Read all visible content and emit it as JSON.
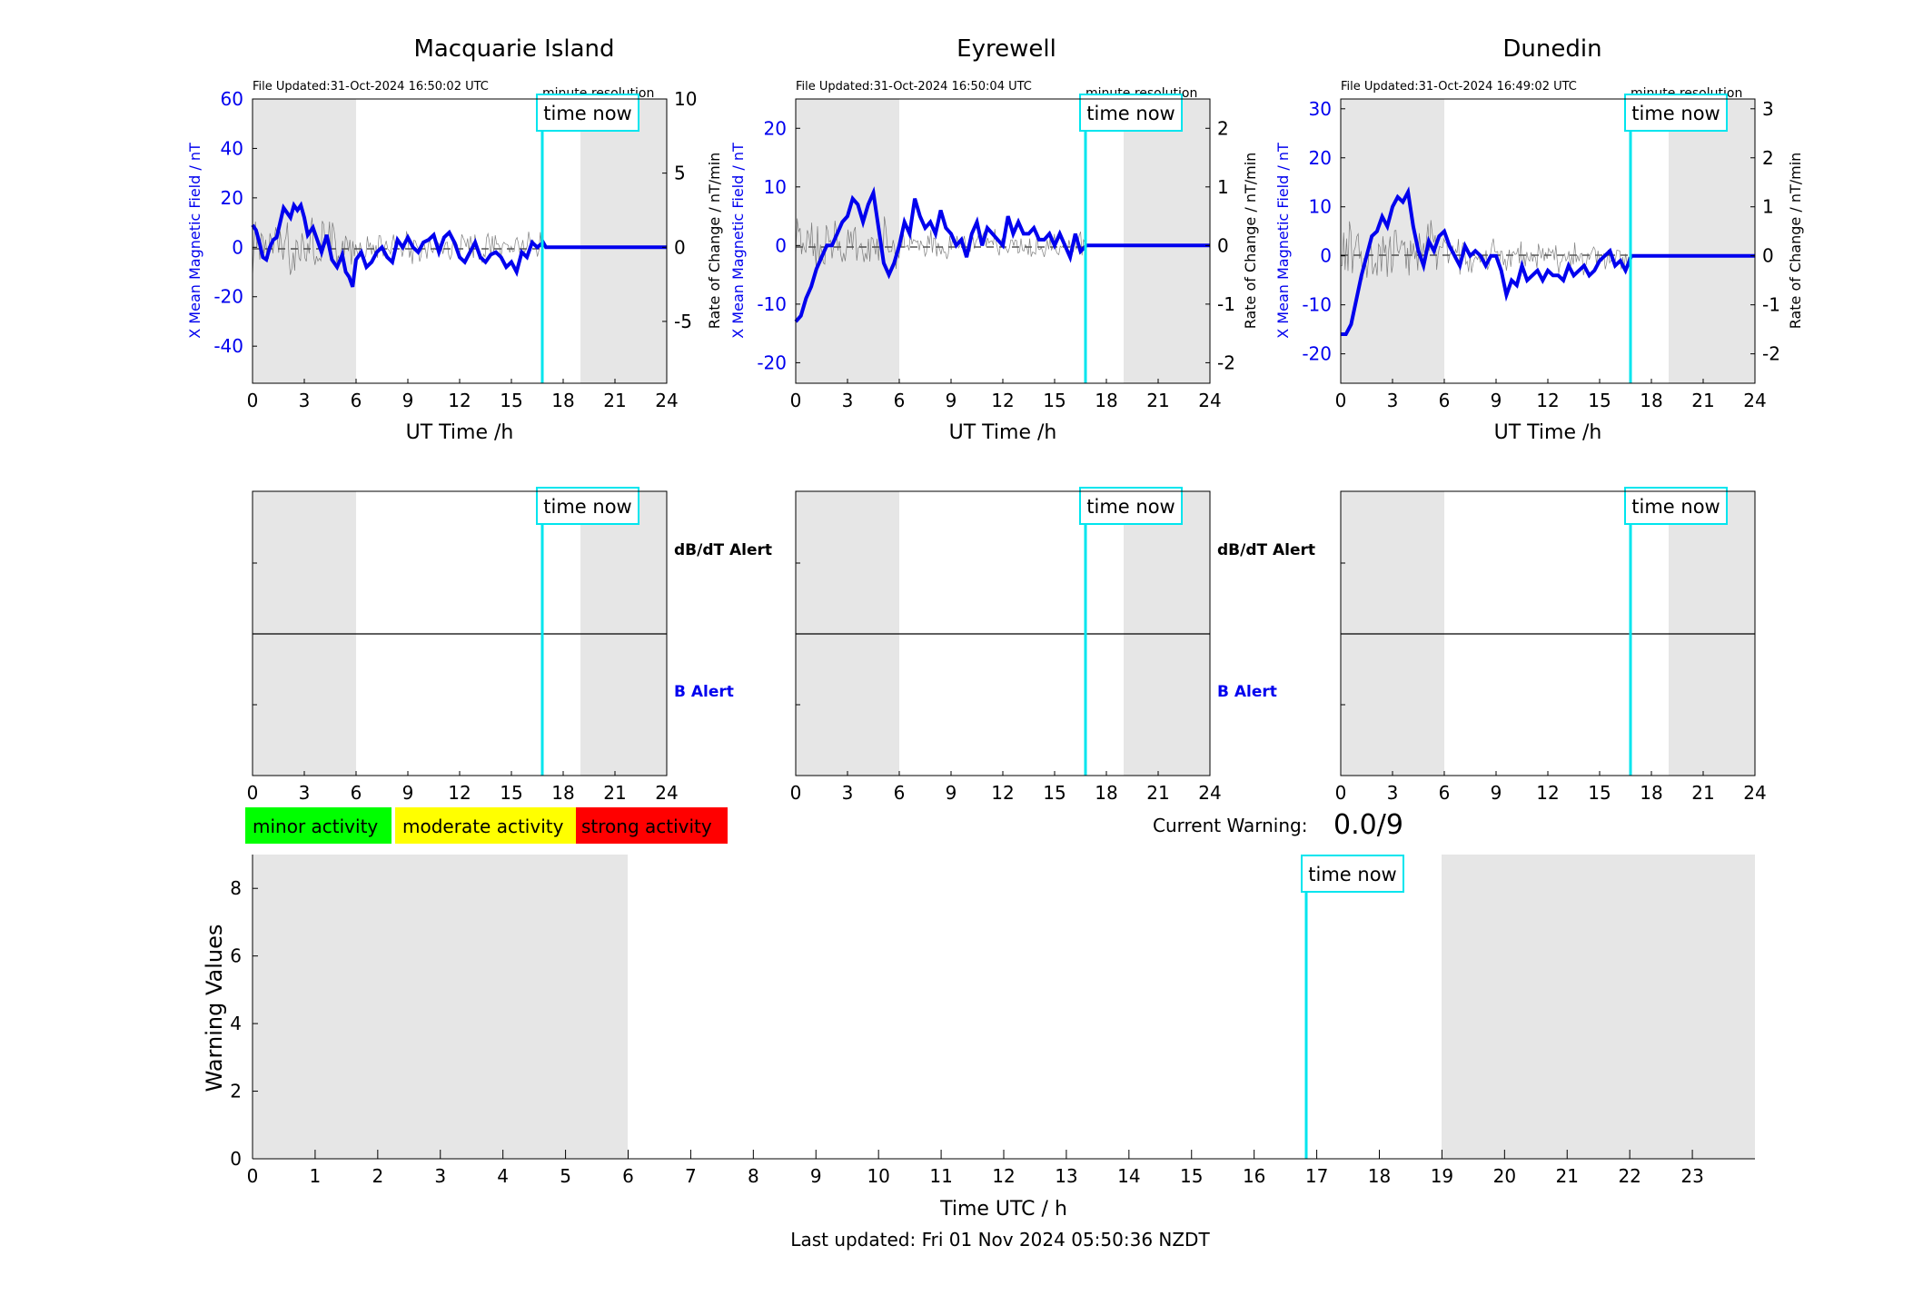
{
  "figure": {
    "footer_text": "Last updated: Fri 01 Nov 2024 05:50:36 NZDT",
    "colors": {
      "shade": "#e6e6e6",
      "mean_line": "#0000ee",
      "rate_line": "#555555",
      "now_line": "#00e5ee",
      "minor": "#00ff00",
      "moderate": "#ffff00",
      "strong": "#ff0000"
    }
  },
  "chart_data": [
    {
      "type": "line",
      "title": "Macquarie Island",
      "file_updated": "File Updated:31-Oct-2024 16:50:02 UTC",
      "resolution_label": "minute resolution",
      "now_label": "time now",
      "now_hour": 16.84,
      "shaded_hours": [
        [
          0,
          6
        ],
        [
          19,
          24
        ]
      ],
      "xlabel": "UT Time /h",
      "ylabel": "X Mean Magnetic Field / nT",
      "ylabel_right": "Rate of Change / nT/min",
      "xlim": [
        0,
        24
      ],
      "xticks": [
        0,
        3,
        6,
        9,
        12,
        15,
        18,
        21,
        24
      ],
      "ylim": [
        -55,
        60
      ],
      "yticks": [
        -40,
        -20,
        0,
        20,
        40,
        60
      ],
      "ylim_right": [
        -9.17,
        10
      ],
      "yticks_right": [
        -5,
        0,
        5,
        10
      ],
      "series": [
        {
          "x": [
            0,
            0.2,
            0.4,
            0.6,
            0.8,
            1.0,
            1.2,
            1.4,
            1.6,
            1.8,
            2.0,
            2.2,
            2.4,
            2.6,
            2.8,
            3.0,
            3.2,
            3.5,
            3.8,
            4.0,
            4.3,
            4.6,
            4.9,
            5.2,
            5.4,
            5.6,
            5.8,
            6.0,
            6.3,
            6.6,
            6.9,
            7.2,
            7.5,
            7.8,
            8.1,
            8.4,
            8.7,
            9.0,
            9.3,
            9.6,
            9.9,
            10.2,
            10.5,
            10.8,
            11.1,
            11.4,
            11.7,
            12.0,
            12.3,
            12.6,
            12.9,
            13.2,
            13.5,
            13.8,
            14.1,
            14.4,
            14.7,
            15.0,
            15.3,
            15.6,
            15.9,
            16.2,
            16.5,
            16.84,
            17,
            18,
            19,
            20,
            21,
            22,
            23,
            24
          ],
          "values": [
            9,
            7,
            2,
            -4,
            -5,
            0,
            3,
            4,
            10,
            16,
            14,
            12,
            17,
            15,
            17,
            12,
            5,
            8,
            2,
            -2,
            5,
            -5,
            -8,
            -3,
            -10,
            -12,
            -16,
            -5,
            -2,
            -8,
            -6,
            -2,
            0,
            -4,
            -6,
            3,
            0,
            4,
            0,
            -2,
            2,
            3,
            5,
            -2,
            4,
            6,
            2,
            -4,
            -6,
            -2,
            2,
            -4,
            -6,
            -3,
            -2,
            -4,
            -8,
            -6,
            -10,
            -2,
            -4,
            2,
            0,
            2,
            0,
            0,
            0,
            0,
            0,
            0,
            0,
            0
          ]
        }
      ]
    },
    {
      "type": "line",
      "title": "Eyrewell",
      "file_updated": "File Updated:31-Oct-2024 16:50:04 UTC",
      "resolution_label": "minute resolution",
      "now_label": "time now",
      "now_hour": 16.84,
      "shaded_hours": [
        [
          0,
          6
        ],
        [
          19,
          24
        ]
      ],
      "xlabel": "UT Time /h",
      "ylabel": "X Mean Magnetic Field / nT",
      "ylabel_right": "Rate of Change / nT/min",
      "xlim": [
        0,
        24
      ],
      "xticks": [
        0,
        3,
        6,
        9,
        12,
        15,
        18,
        21,
        24
      ],
      "ylim": [
        -23.5,
        25
      ],
      "yticks": [
        -20,
        -10,
        0,
        10,
        20
      ],
      "ylim_right": [
        -2.35,
        2.5
      ],
      "yticks_right": [
        -2,
        -1,
        0,
        1,
        2
      ],
      "series": [
        {
          "x": [
            0,
            0.3,
            0.6,
            0.9,
            1.2,
            1.5,
            1.8,
            2.1,
            2.4,
            2.7,
            3.0,
            3.3,
            3.6,
            3.9,
            4.2,
            4.5,
            4.8,
            5.1,
            5.4,
            5.7,
            6.0,
            6.3,
            6.6,
            6.9,
            7.2,
            7.5,
            7.8,
            8.1,
            8.4,
            8.7,
            9.0,
            9.3,
            9.6,
            9.9,
            10.2,
            10.5,
            10.8,
            11.1,
            11.4,
            11.7,
            12.0,
            12.3,
            12.6,
            12.9,
            13.2,
            13.5,
            13.8,
            14.1,
            14.4,
            14.7,
            15.0,
            15.3,
            15.6,
            15.9,
            16.2,
            16.5,
            16.84,
            17,
            18,
            19,
            20,
            21,
            22,
            23,
            24
          ],
          "values": [
            -13,
            -12,
            -9,
            -7,
            -4,
            -2,
            0,
            0,
            2,
            4,
            5,
            8,
            7,
            4,
            7,
            9,
            3,
            -3,
            -5,
            -3,
            0,
            4,
            2,
            8,
            5,
            3,
            4,
            2,
            6,
            3,
            2,
            0,
            1,
            -2,
            2,
            4,
            0,
            3,
            2,
            1,
            0,
            5,
            2,
            4,
            2,
            2,
            3,
            1,
            1,
            2,
            0,
            2,
            0,
            -2,
            2,
            -1,
            0,
            0,
            0,
            0,
            0,
            0,
            0,
            0,
            0
          ]
        }
      ]
    },
    {
      "type": "line",
      "title": "Dunedin",
      "file_updated": "File Updated:31-Oct-2024 16:49:02 UTC",
      "resolution_label": "minute resolution",
      "now_label": "time now",
      "now_hour": 16.84,
      "shaded_hours": [
        [
          0,
          6
        ],
        [
          19,
          24
        ]
      ],
      "xlabel": "UT Time /h",
      "ylabel": "X Mean Magnetic Field / nT",
      "ylabel_right": "Rate of Change / nT/min",
      "xlim": [
        0,
        24
      ],
      "xticks": [
        0,
        3,
        6,
        9,
        12,
        15,
        18,
        21,
        24
      ],
      "ylim": [
        -26,
        32
      ],
      "yticks": [
        -20,
        -10,
        0,
        10,
        20,
        30
      ],
      "ylim_right": [
        -2.6,
        3.2
      ],
      "yticks_right": [
        -2,
        -1,
        0,
        1,
        2,
        3
      ],
      "series": [
        {
          "x": [
            0,
            0.3,
            0.6,
            0.9,
            1.2,
            1.5,
            1.8,
            2.1,
            2.4,
            2.7,
            3.0,
            3.3,
            3.6,
            3.9,
            4.2,
            4.5,
            4.8,
            5.1,
            5.4,
            5.7,
            6.0,
            6.3,
            6.6,
            6.9,
            7.2,
            7.5,
            7.8,
            8.1,
            8.4,
            8.7,
            9.0,
            9.3,
            9.6,
            9.9,
            10.2,
            10.5,
            10.8,
            11.1,
            11.4,
            11.7,
            12.0,
            12.3,
            12.6,
            12.9,
            13.2,
            13.5,
            13.8,
            14.1,
            14.4,
            14.7,
            15.0,
            15.3,
            15.6,
            15.9,
            16.2,
            16.5,
            16.84,
            17,
            18,
            19,
            20,
            21,
            22,
            23,
            24
          ],
          "values": [
            -16,
            -16,
            -14,
            -9,
            -4,
            0,
            4,
            5,
            8,
            6,
            10,
            12,
            11,
            13,
            6,
            1,
            -2,
            3,
            1,
            4,
            5,
            2,
            0,
            -2,
            2,
            0,
            1,
            0,
            -2,
            0,
            0,
            -3,
            -8,
            -5,
            -6,
            -2,
            -5,
            -4,
            -3,
            -5,
            -3,
            -4,
            -4,
            -5,
            -2,
            -4,
            -3,
            -2,
            -4,
            -3,
            -1,
            0,
            1,
            -2,
            -1,
            -3,
            0,
            0,
            0,
            0,
            0,
            0,
            0,
            0,
            0
          ]
        }
      ]
    },
    {
      "type": "line",
      "now_label": "time now",
      "now_hour": 16.84,
      "shaded_hours": [
        [
          0,
          6
        ],
        [
          19,
          24
        ]
      ],
      "xlim": [
        0,
        24
      ],
      "xticks": [
        0,
        3,
        6,
        9,
        12,
        15,
        18,
        21,
        24
      ],
      "alert_upper_label": "dB/dT Alert",
      "alert_lower_label": "B Alert",
      "series": []
    },
    {
      "type": "line",
      "now_label": "time now",
      "now_hour": 16.84,
      "shaded_hours": [
        [
          0,
          6
        ],
        [
          19,
          24
        ]
      ],
      "xlim": [
        0,
        24
      ],
      "xticks": [
        0,
        3,
        6,
        9,
        12,
        15,
        18,
        21,
        24
      ],
      "alert_upper_label": "dB/dT Alert",
      "alert_lower_label": "B Alert",
      "series": []
    },
    {
      "type": "line",
      "now_label": "time now",
      "now_hour": 16.84,
      "shaded_hours": [
        [
          0,
          6
        ],
        [
          19,
          24
        ]
      ],
      "xlim": [
        0,
        24
      ],
      "xticks": [
        0,
        3,
        6,
        9,
        12,
        15,
        18,
        21,
        24
      ],
      "series": []
    },
    {
      "type": "bar",
      "now_label": "time now",
      "now_hour": 16.84,
      "shaded_hours": [
        [
          0,
          6
        ],
        [
          19,
          24
        ]
      ],
      "xlabel": "Time UTC / h",
      "ylabel": "Warning Values",
      "xlim": [
        0,
        24
      ],
      "xticks": [
        0,
        1,
        2,
        3,
        4,
        5,
        6,
        7,
        8,
        9,
        10,
        11,
        12,
        13,
        14,
        15,
        16,
        17,
        18,
        19,
        20,
        21,
        22,
        23
      ],
      "ylim": [
        0,
        9
      ],
      "yticks": [
        0,
        2,
        4,
        6,
        8
      ],
      "legend": [
        "minor activity",
        "moderate activity",
        "strong activity"
      ],
      "current_warning_label": "Current Warning:",
      "current_warning_value": "0.0/9",
      "series": []
    }
  ]
}
